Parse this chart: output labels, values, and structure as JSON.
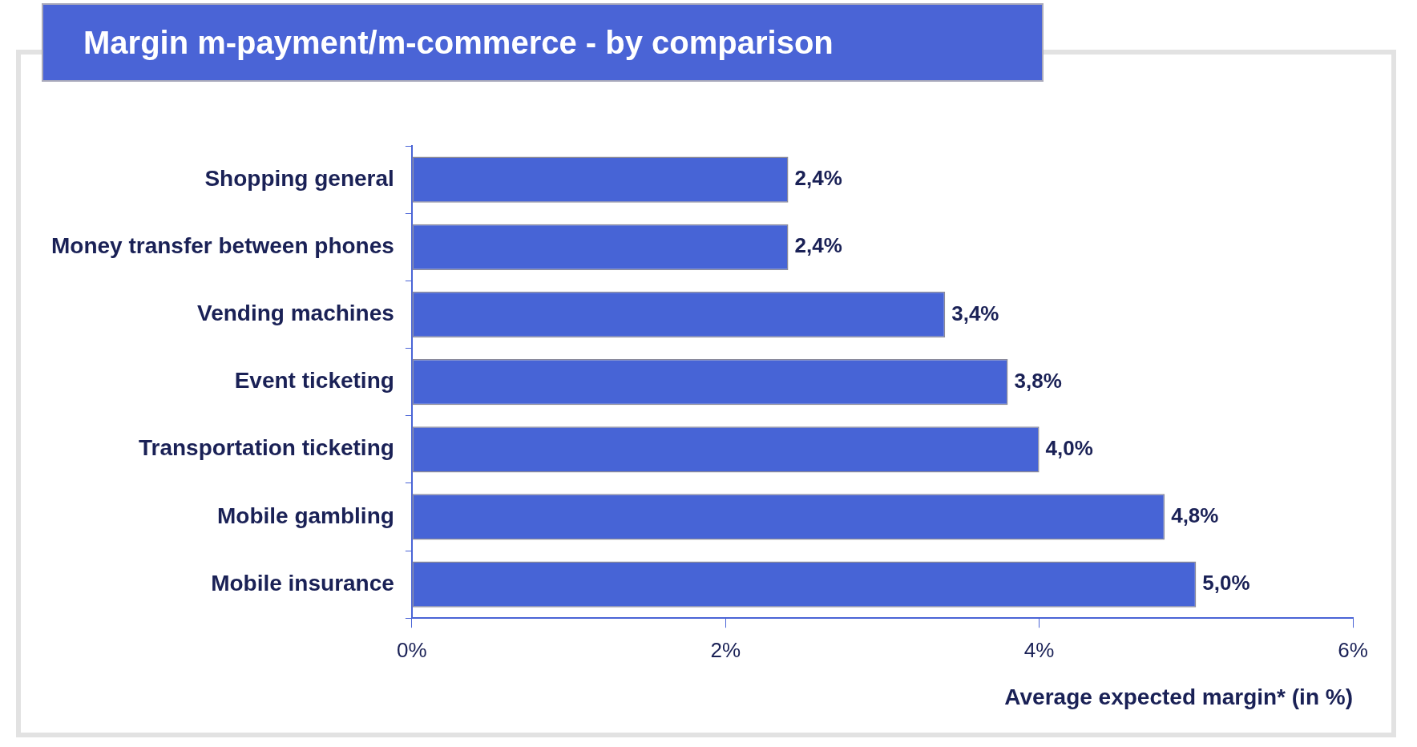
{
  "chart_data": {
    "type": "bar",
    "orientation": "horizontal",
    "title": "Margin m-payment/m-commerce - by comparison",
    "xlabel": "Average expected margin* (in %)",
    "categories": [
      "Shopping general",
      "Money transfer between phones",
      "Vending machines",
      "Event ticketing",
      "Transportation ticketing",
      "Mobile gambling",
      "Mobile insurance"
    ],
    "values": [
      2.4,
      2.4,
      3.4,
      3.8,
      4.0,
      4.8,
      5.0
    ],
    "value_labels": [
      "2,4%",
      "2,4%",
      "3,4%",
      "3,8%",
      "4,0%",
      "4,8%",
      "5,0%"
    ],
    "color": "#4764d6",
    "xlim": [
      0,
      6
    ],
    "xticks": [
      {
        "value": 0,
        "label": "0%"
      },
      {
        "value": 2,
        "label": "2%"
      },
      {
        "value": 4,
        "label": "4%"
      },
      {
        "value": 6,
        "label": "6%"
      }
    ],
    "grid": false,
    "legend": false
  }
}
